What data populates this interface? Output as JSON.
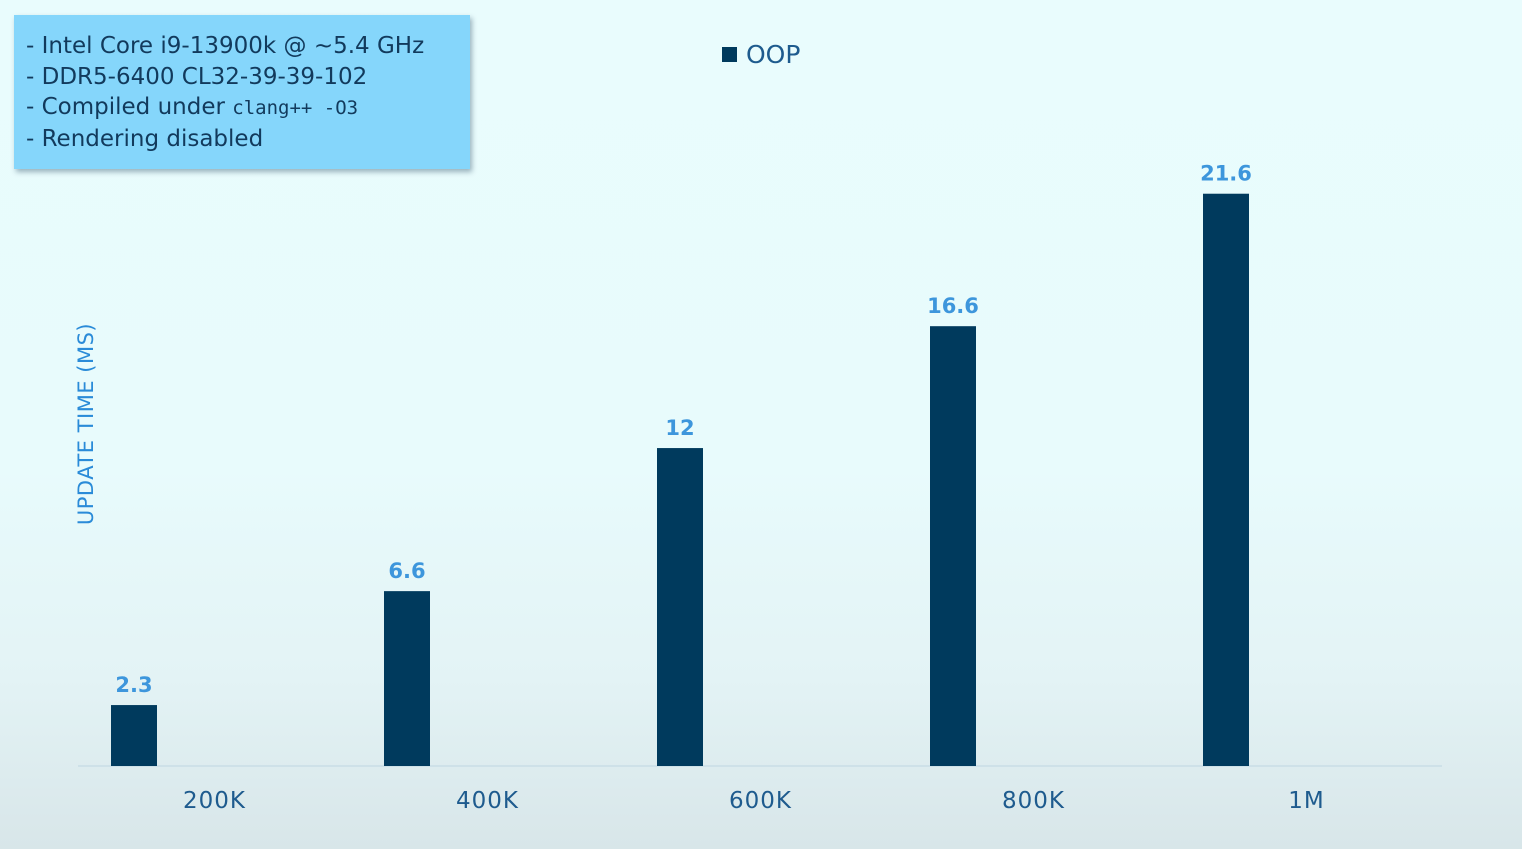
{
  "info_box": {
    "line1": "- Intel Core i9-13900k @ ~5.4 GHz",
    "line2": "- DDR5-6400 CL32-39-39-102",
    "line3_prefix": "- Compiled under ",
    "line3_code": "clang++ -O3",
    "line4": "- Rendering disabled"
  },
  "chart_data": {
    "type": "bar",
    "title": "",
    "xlabel": "",
    "ylabel": "UPDATE TIME (MS)",
    "categories": [
      "200K",
      "400K",
      "600K",
      "800K",
      "1M"
    ],
    "series": [
      {
        "name": "OOP",
        "values": [
          2.3,
          6.6,
          12,
          16.6,
          21.6
        ]
      }
    ],
    "data_labels": [
      "2.3",
      "6.6",
      "12",
      "16.6",
      "21.6"
    ],
    "ylim": [
      0,
      23.25
    ],
    "grid": false,
    "legend_position": "top-center",
    "colors": {
      "OOP": "#003a5d"
    }
  }
}
